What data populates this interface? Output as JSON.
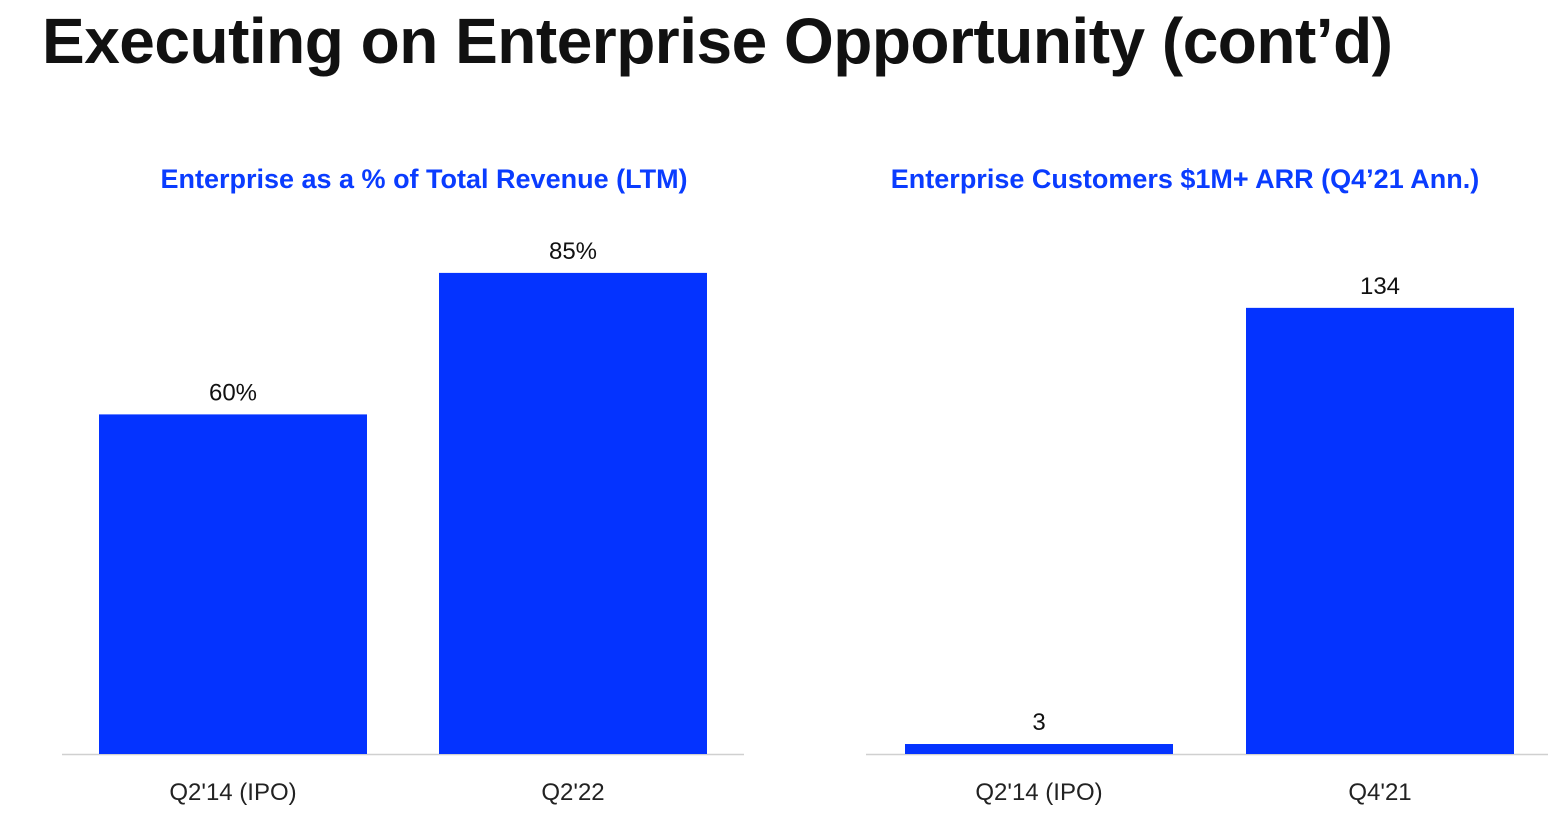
{
  "title": "Executing on Enterprise Opportunity (cont’d)",
  "colors": {
    "bar": "#0433ff",
    "chart_title": "#0a3cff",
    "axis": "#d0d0d0"
  },
  "chart_data": [
    {
      "type": "bar",
      "title": "Enterprise as a % of Total Revenue (LTM)",
      "categories": [
        "Q2'14 (IPO)",
        "Q2'22"
      ],
      "values": [
        60,
        85
      ],
      "data_labels": [
        "60%",
        "85%"
      ],
      "xlabel": "",
      "ylabel": "",
      "ylim": [
        0,
        100
      ],
      "grid": false
    },
    {
      "type": "bar",
      "title": "Enterprise Customers $1M+ ARR (Q4’21 Ann.)",
      "categories": [
        "Q2'14 (IPO)",
        "Q4'21"
      ],
      "values": [
        3,
        134
      ],
      "data_labels": [
        "3",
        "134"
      ],
      "xlabel": "",
      "ylabel": "",
      "ylim": [
        0,
        170
      ],
      "grid": false
    }
  ]
}
